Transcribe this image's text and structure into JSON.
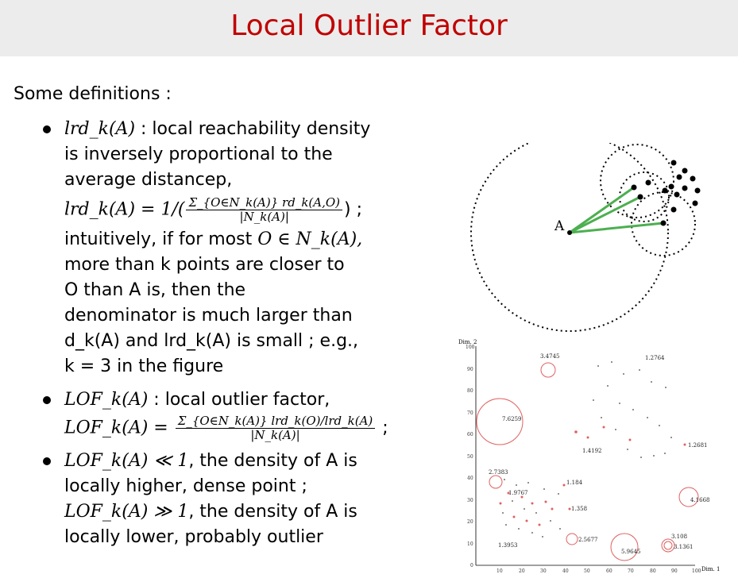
{
  "title": "Local Outlier Factor",
  "intro": "Some definitions :",
  "bullet1": {
    "term": "lrd_k(A)",
    "desc": ": local reachability density is inversely proportional to the average distancep,",
    "formula_left": "lrd_k(A) = 1/(",
    "formula_num": "Σ_{O∈N_k(A)} rd_k(A,O)",
    "formula_den": "|N_k(A)|",
    "formula_right": ") ;",
    "intuition_lead": "intuitively, if for most",
    "intuition_math": "O ∈ N_k(A),",
    "line_more": "more than k points are closer to",
    "line_o": "O than A is, then the",
    "line_denom": "denominator is much larger than",
    "line_dk": "d_k(A) and lrd_k(A) is small ; e.g.,",
    "line_k3": "k = 3 in the figure"
  },
  "bullet2": {
    "term": "LOF_k(A)",
    "desc": ": local outlier factor,",
    "formula_left": "LOF_k(A) =",
    "formula_num": "Σ_{O∈N_k(A)} lrd_k(O)/lrd_k(A)",
    "formula_den": "|N_k(A)|",
    "formula_right": ";"
  },
  "bullet3": {
    "line1_math": "LOF_k(A) ≪ 1",
    "line1_text": ", the density of A is",
    "line2": "locally higher, dense point ;",
    "line3_math": "LOF_k(A) ≫ 1",
    "line3_text": ", the density of A is",
    "line4": "locally lower, probably outlier"
  },
  "diagram": {
    "point_label": "A"
  },
  "scatter": {
    "y_axis_title": "Dim. 2",
    "x_axis_title": "Dim. 1",
    "y_ticks": [
      "100",
      "90",
      "80",
      "70",
      "60",
      "50",
      "40",
      "30",
      "20",
      "10",
      "0"
    ],
    "x_ticks": [
      "10",
      "20",
      "30",
      "40",
      "50",
      "60",
      "70",
      "80",
      "90",
      "100"
    ],
    "labels": [
      "3.4745",
      "1.2764",
      "7.6259",
      "1.4192",
      "1.2681",
      "2.7383",
      "1.184",
      "1.9767",
      "1.358",
      "4.1668",
      "2.5677",
      "1.3953",
      "3.108",
      "3.1361",
      "5.9645"
    ]
  },
  "colors": {
    "title": "#c00000",
    "title_bg": "#ececec",
    "lof_circle": "#e06060",
    "green": "#4caf50"
  }
}
